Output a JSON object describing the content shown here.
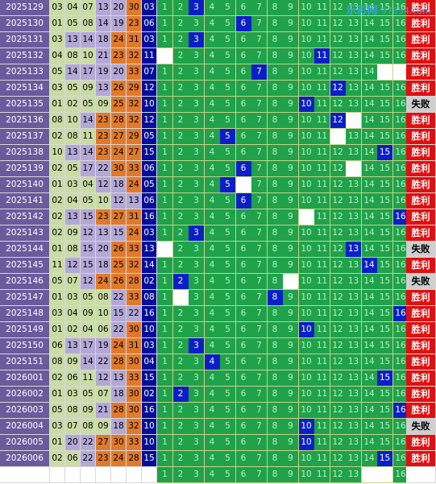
{
  "watermark": {
    "logo_text": "乐彩网",
    "url": "97654.com"
  },
  "results": {
    "win": "胜利",
    "lose": "失败"
  },
  "rows": [
    {
      "period": "2025129",
      "reds": [
        "03",
        "04",
        "07",
        "13",
        "20",
        "30"
      ],
      "blue": "03",
      "miss": [],
      "result": "win"
    },
    {
      "period": "2025130",
      "reds": [
        "01",
        "05",
        "08",
        "14",
        "19",
        "23"
      ],
      "blue": "06",
      "miss": [],
      "result": "win"
    },
    {
      "period": "2025131",
      "reds": [
        "03",
        "13",
        "14",
        "18",
        "24",
        "31"
      ],
      "blue": "03",
      "miss": [],
      "result": "win"
    },
    {
      "period": "2025132",
      "reds": [
        "04",
        "08",
        "10",
        "21",
        "23",
        "32"
      ],
      "blue": "11",
      "miss": [
        1
      ],
      "result": "win"
    },
    {
      "period": "2025133",
      "reds": [
        "05",
        "14",
        "17",
        "19",
        "20",
        "33"
      ],
      "blue": "07",
      "miss": [
        15,
        16
      ],
      "result": "win"
    },
    {
      "period": "2025134",
      "reds": [
        "03",
        "05",
        "09",
        "13",
        "26",
        "29"
      ],
      "blue": "12",
      "miss": [],
      "result": "win"
    },
    {
      "period": "2025135",
      "reds": [
        "01",
        "02",
        "05",
        "09",
        "25",
        "32"
      ],
      "blue": "10",
      "miss": [
        10
      ],
      "result": "lose"
    },
    {
      "period": "2025136",
      "reds": [
        "08",
        "10",
        "14",
        "23",
        "28",
        "32"
      ],
      "blue": "12",
      "miss": [
        13
      ],
      "result": "win"
    },
    {
      "period": "2025137",
      "reds": [
        "02",
        "08",
        "11",
        "23",
        "27",
        "29"
      ],
      "blue": "05",
      "miss": [
        12
      ],
      "result": "win"
    },
    {
      "period": "2025138",
      "reds": [
        "10",
        "13",
        "14",
        "23",
        "24",
        "27"
      ],
      "blue": "15",
      "miss": [],
      "result": "win"
    },
    {
      "period": "2025139",
      "reds": [
        "02",
        "05",
        "17",
        "22",
        "30",
        "33"
      ],
      "blue": "06",
      "miss": [
        13
      ],
      "result": "win"
    },
    {
      "period": "2025140",
      "reds": [
        "01",
        "03",
        "04",
        "12",
        "18",
        "24"
      ],
      "blue": "05",
      "miss": [
        6
      ],
      "result": "win"
    },
    {
      "period": "2025141",
      "reds": [
        "02",
        "04",
        "05",
        "10",
        "12",
        "13"
      ],
      "blue": "06",
      "miss": [],
      "result": "win"
    },
    {
      "period": "2025142",
      "reds": [
        "02",
        "13",
        "15",
        "23",
        "27",
        "31"
      ],
      "blue": "16",
      "miss": [
        10
      ],
      "result": "win"
    },
    {
      "period": "2025143",
      "reds": [
        "02",
        "09",
        "12",
        "13",
        "15",
        "24"
      ],
      "blue": "03",
      "miss": [],
      "result": "win"
    },
    {
      "period": "2025144",
      "reds": [
        "01",
        "08",
        "15",
        "20",
        "26",
        "33"
      ],
      "blue": "13",
      "miss": [
        1
      ],
      "result": "lose"
    },
    {
      "period": "2025145",
      "reds": [
        "11",
        "12",
        "15",
        "18",
        "25",
        "32"
      ],
      "blue": "14",
      "miss": [],
      "result": "win"
    },
    {
      "period": "2025146",
      "reds": [
        "05",
        "07",
        "12",
        "24",
        "26",
        "28"
      ],
      "blue": "02",
      "miss": [
        2,
        9
      ],
      "result": "lose"
    },
    {
      "period": "2025147",
      "reds": [
        "01",
        "03",
        "05",
        "08",
        "22",
        "33"
      ],
      "blue": "08",
      "miss": [
        2
      ],
      "result": "win"
    },
    {
      "period": "2025148",
      "reds": [
        "03",
        "04",
        "09",
        "10",
        "15",
        "22"
      ],
      "blue": "16",
      "miss": [],
      "result": "win"
    },
    {
      "period": "2025149",
      "reds": [
        "01",
        "02",
        "04",
        "06",
        "22",
        "30"
      ],
      "blue": "10",
      "miss": [],
      "result": "win"
    },
    {
      "period": "2025150",
      "reds": [
        "06",
        "13",
        "17",
        "19",
        "24",
        "31"
      ],
      "blue": "03",
      "miss": [],
      "result": "win"
    },
    {
      "period": "2025151",
      "reds": [
        "08",
        "09",
        "14",
        "22",
        "28",
        "30"
      ],
      "blue": "04",
      "miss": [],
      "result": "win"
    },
    {
      "period": "2026001",
      "reds": [
        "02",
        "06",
        "11",
        "12",
        "13",
        "33"
      ],
      "blue": "15",
      "miss": [],
      "result": "win"
    },
    {
      "period": "2026002",
      "reds": [
        "01",
        "03",
        "05",
        "07",
        "18",
        "30"
      ],
      "blue": "02",
      "miss": [],
      "result": "win"
    },
    {
      "period": "2026003",
      "reds": [
        "05",
        "08",
        "09",
        "21",
        "28",
        "30"
      ],
      "blue": "16",
      "miss": [],
      "result": "win"
    },
    {
      "period": "2026004",
      "reds": [
        "03",
        "07",
        "08",
        "09",
        "18",
        "32"
      ],
      "blue": "10",
      "miss": [
        10
      ],
      "result": "lose"
    },
    {
      "period": "2026005",
      "reds": [
        "01",
        "20",
        "22",
        "27",
        "30",
        "33"
      ],
      "blue": "10",
      "miss": [],
      "result": "win"
    },
    {
      "period": "2026006",
      "reds": [
        "02",
        "06",
        "22",
        "23",
        "24",
        "28"
      ],
      "blue": "15",
      "miss": [],
      "result": "win"
    },
    {
      "period": "",
      "reds": [
        "",
        "",
        "",
        "",
        "",
        ""
      ],
      "blue": "",
      "miss": [
        14,
        15
      ],
      "result": "none"
    }
  ]
}
